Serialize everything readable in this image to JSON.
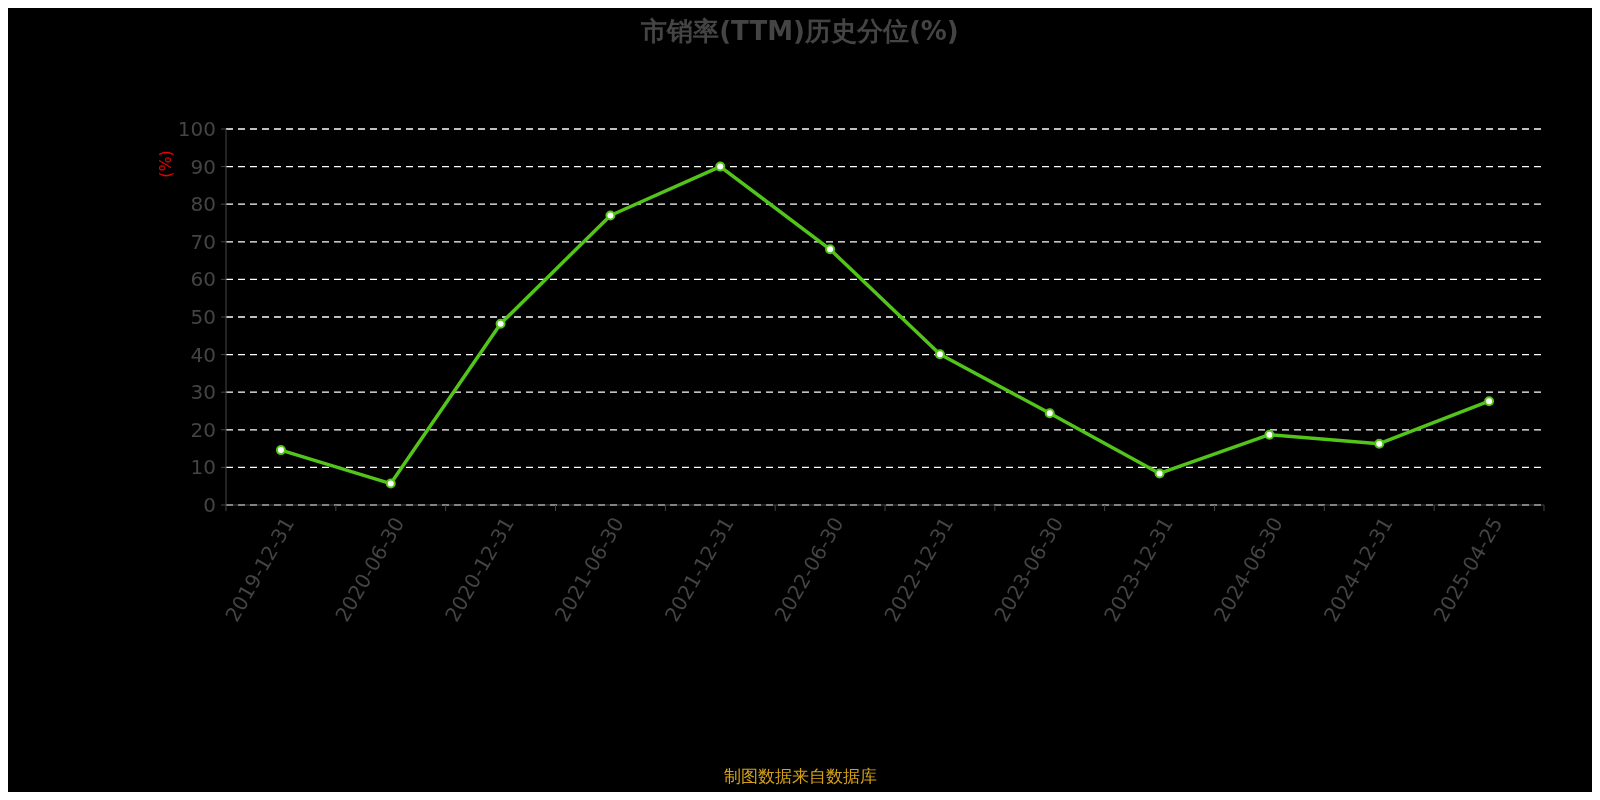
{
  "chart_data": {
    "type": "line",
    "title": "市销率(TTM)历史分位(%)",
    "ylabel": "(%)",
    "annotations": [
      "制图数据来自数据库"
    ],
    "categories": [
      "2019-12-31",
      "2020-06-30",
      "2020-12-31",
      "2021-06-30",
      "2021-12-31",
      "2022-06-30",
      "2022-12-31",
      "2023-06-30",
      "2023-12-31",
      "2024-06-30",
      "2024-12-31",
      "2025-04-25"
    ],
    "series": [
      {
        "color": "#52c41a",
        "values": [
          14.6,
          5.7,
          48.2,
          77.0,
          90.0,
          68.0,
          40.1,
          24.4,
          8.4,
          18.7,
          16.3,
          27.6
        ]
      }
    ],
    "ylim": [
      0,
      100
    ],
    "yticks": [
      0,
      10,
      20,
      30,
      40,
      50,
      60,
      70,
      80,
      90,
      100
    ],
    "grid": "y",
    "marker": "circle",
    "line_style": "solid"
  }
}
